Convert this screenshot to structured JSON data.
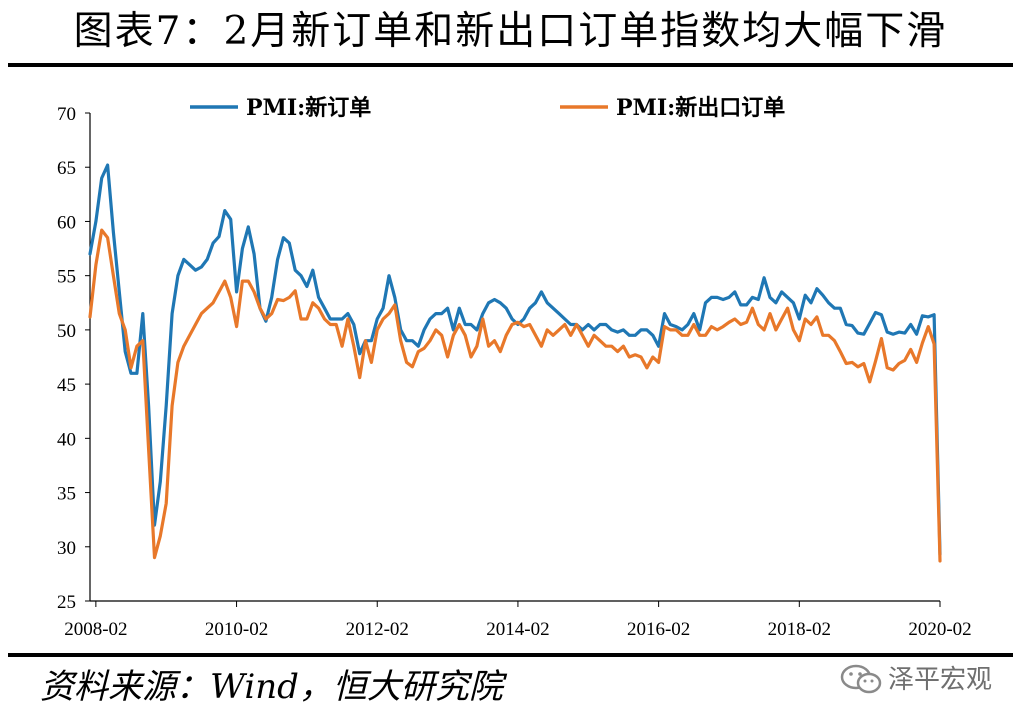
{
  "title": "图表7：2月新订单和新出口订单指数均大幅下滑",
  "source": "资料来源：Wind，恒大研究院",
  "watermark": {
    "text": "泽平宏观",
    "icon": "wechat-icon"
  },
  "chart_data": {
    "type": "line",
    "xlim": [
      "2008-01",
      "2020-02"
    ],
    "ylim": [
      25,
      70
    ],
    "y_ticks": [
      "25",
      "30",
      "35",
      "40",
      "45",
      "50",
      "55",
      "60",
      "65",
      "70"
    ],
    "x_ticks": [
      "2008-02",
      "2010-02",
      "2012-02",
      "2014-02",
      "2016-02",
      "2018-02",
      "2020-02"
    ],
    "grid": false,
    "legend_position": "top",
    "series": [
      {
        "name": "PMI:新订单",
        "color": "#1f77b4",
        "points": [
          [
            "2008-01",
            57.0
          ],
          [
            "2008-02",
            60.0
          ],
          [
            "2008-03",
            64.0
          ],
          [
            "2008-04",
            65.2
          ],
          [
            "2008-05",
            59.0
          ],
          [
            "2008-06",
            53.5
          ],
          [
            "2008-07",
            48.0
          ],
          [
            "2008-08",
            46.0
          ],
          [
            "2008-09",
            46.0
          ],
          [
            "2008-10",
            51.5
          ],
          [
            "2008-11",
            43.0
          ],
          [
            "2008-12",
            32.0
          ],
          [
            "2009-01",
            36.0
          ],
          [
            "2009-02",
            43.0
          ],
          [
            "2009-03",
            51.5
          ],
          [
            "2009-04",
            55.0
          ],
          [
            "2009-05",
            56.5
          ],
          [
            "2009-06",
            56.0
          ],
          [
            "2009-07",
            55.5
          ],
          [
            "2009-08",
            55.8
          ],
          [
            "2009-09",
            56.5
          ],
          [
            "2009-10",
            58.0
          ],
          [
            "2009-11",
            58.6
          ],
          [
            "2009-12",
            61.0
          ],
          [
            "2010-01",
            60.2
          ],
          [
            "2010-02",
            53.5
          ],
          [
            "2010-03",
            57.5
          ],
          [
            "2010-04",
            59.5
          ],
          [
            "2010-05",
            57.0
          ],
          [
            "2010-06",
            52.0
          ],
          [
            "2010-07",
            50.8
          ],
          [
            "2010-08",
            53.0
          ],
          [
            "2010-09",
            56.5
          ],
          [
            "2010-10",
            58.5
          ],
          [
            "2010-11",
            58.0
          ],
          [
            "2010-12",
            55.5
          ],
          [
            "2011-01",
            55.0
          ],
          [
            "2011-02",
            54.0
          ],
          [
            "2011-03",
            55.5
          ],
          [
            "2011-04",
            53.0
          ],
          [
            "2011-05",
            52.0
          ],
          [
            "2011-06",
            51.0
          ],
          [
            "2011-07",
            51.0
          ],
          [
            "2011-08",
            51.0
          ],
          [
            "2011-09",
            51.5
          ],
          [
            "2011-10",
            50.5
          ],
          [
            "2011-11",
            47.8
          ],
          [
            "2011-12",
            49.0
          ],
          [
            "2012-01",
            49.0
          ],
          [
            "2012-02",
            51.0
          ],
          [
            "2012-03",
            52.0
          ],
          [
            "2012-04",
            55.0
          ],
          [
            "2012-05",
            53.0
          ],
          [
            "2012-06",
            50.0
          ],
          [
            "2012-07",
            49.0
          ],
          [
            "2012-08",
            49.0
          ],
          [
            "2012-09",
            48.5
          ],
          [
            "2012-10",
            50.0
          ],
          [
            "2012-11",
            51.0
          ],
          [
            "2012-12",
            51.5
          ],
          [
            "2013-01",
            51.5
          ],
          [
            "2013-02",
            52.0
          ],
          [
            "2013-03",
            50.0
          ],
          [
            "2013-04",
            52.0
          ],
          [
            "2013-05",
            50.5
          ],
          [
            "2013-06",
            50.5
          ],
          [
            "2013-07",
            50.0
          ],
          [
            "2013-08",
            51.5
          ],
          [
            "2013-09",
            52.5
          ],
          [
            "2013-10",
            52.8
          ],
          [
            "2013-11",
            52.5
          ],
          [
            "2013-12",
            52.0
          ],
          [
            "2014-01",
            51.0
          ],
          [
            "2014-02",
            50.5
          ],
          [
            "2014-03",
            51.0
          ],
          [
            "2014-04",
            52.0
          ],
          [
            "2014-05",
            52.5
          ],
          [
            "2014-06",
            53.5
          ],
          [
            "2014-07",
            52.5
          ],
          [
            "2014-08",
            52.0
          ],
          [
            "2014-09",
            51.5
          ],
          [
            "2014-10",
            51.0
          ],
          [
            "2014-11",
            50.5
          ],
          [
            "2014-12",
            50.5
          ],
          [
            "2015-01",
            50.0
          ],
          [
            "2015-02",
            50.5
          ],
          [
            "2015-03",
            50.0
          ],
          [
            "2015-04",
            50.5
          ],
          [
            "2015-05",
            50.5
          ],
          [
            "2015-06",
            50.0
          ],
          [
            "2015-07",
            49.8
          ],
          [
            "2015-08",
            50.0
          ],
          [
            "2015-09",
            49.5
          ],
          [
            "2015-10",
            49.5
          ],
          [
            "2015-11",
            50.0
          ],
          [
            "2015-12",
            50.0
          ],
          [
            "2016-01",
            49.5
          ],
          [
            "2016-02",
            48.5
          ],
          [
            "2016-03",
            51.5
          ],
          [
            "2016-04",
            50.5
          ],
          [
            "2016-05",
            50.3
          ],
          [
            "2016-06",
            50.0
          ],
          [
            "2016-07",
            50.5
          ],
          [
            "2016-08",
            51.5
          ],
          [
            "2016-09",
            50.0
          ],
          [
            "2016-10",
            52.5
          ],
          [
            "2016-11",
            53.0
          ],
          [
            "2016-12",
            53.0
          ],
          [
            "2017-01",
            52.8
          ],
          [
            "2017-02",
            53.0
          ],
          [
            "2017-03",
            53.5
          ],
          [
            "2017-04",
            52.3
          ],
          [
            "2017-05",
            52.3
          ],
          [
            "2017-06",
            53.0
          ],
          [
            "2017-07",
            52.8
          ],
          [
            "2017-08",
            54.8
          ],
          [
            "2017-09",
            53.0
          ],
          [
            "2017-10",
            52.5
          ],
          [
            "2017-11",
            53.5
          ],
          [
            "2017-12",
            53.0
          ],
          [
            "2018-01",
            52.5
          ],
          [
            "2018-02",
            51.0
          ],
          [
            "2018-03",
            53.2
          ],
          [
            "2018-04",
            52.5
          ],
          [
            "2018-05",
            53.8
          ],
          [
            "2018-06",
            53.2
          ],
          [
            "2018-07",
            52.5
          ],
          [
            "2018-08",
            52.0
          ],
          [
            "2018-09",
            52.0
          ],
          [
            "2018-10",
            50.5
          ],
          [
            "2018-11",
            50.4
          ],
          [
            "2018-12",
            49.7
          ],
          [
            "2019-01",
            49.6
          ],
          [
            "2019-02",
            50.6
          ],
          [
            "2019-03",
            51.6
          ],
          [
            "2019-04",
            51.4
          ],
          [
            "2019-05",
            49.8
          ],
          [
            "2019-06",
            49.6
          ],
          [
            "2019-07",
            49.8
          ],
          [
            "2019-08",
            49.7
          ],
          [
            "2019-09",
            50.5
          ],
          [
            "2019-10",
            49.6
          ],
          [
            "2019-11",
            51.3
          ],
          [
            "2019-12",
            51.2
          ],
          [
            "2020-01",
            51.4
          ],
          [
            "2020-02",
            29.3
          ]
        ]
      },
      {
        "name": "PMI:新出口订单",
        "color": "#e8782a",
        "points": [
          [
            "2008-01",
            51.2
          ],
          [
            "2008-02",
            56.0
          ],
          [
            "2008-03",
            59.2
          ],
          [
            "2008-04",
            58.5
          ],
          [
            "2008-05",
            55.0
          ],
          [
            "2008-06",
            51.5
          ],
          [
            "2008-07",
            50.0
          ],
          [
            "2008-08",
            46.5
          ],
          [
            "2008-09",
            48.5
          ],
          [
            "2008-10",
            49.0
          ],
          [
            "2008-11",
            39.0
          ],
          [
            "2008-12",
            29.0
          ],
          [
            "2009-01",
            31.0
          ],
          [
            "2009-02",
            34.0
          ],
          [
            "2009-03",
            43.0
          ],
          [
            "2009-04",
            47.0
          ],
          [
            "2009-05",
            48.5
          ],
          [
            "2009-06",
            49.5
          ],
          [
            "2009-07",
            50.5
          ],
          [
            "2009-08",
            51.5
          ],
          [
            "2009-09",
            52.0
          ],
          [
            "2009-10",
            52.5
          ],
          [
            "2009-11",
            53.5
          ],
          [
            "2009-12",
            54.5
          ],
          [
            "2010-01",
            53.0
          ],
          [
            "2010-02",
            50.3
          ],
          [
            "2010-03",
            54.5
          ],
          [
            "2010-04",
            54.5
          ],
          [
            "2010-05",
            53.5
          ],
          [
            "2010-06",
            52.0
          ],
          [
            "2010-07",
            51.0
          ],
          [
            "2010-08",
            51.5
          ],
          [
            "2010-09",
            52.8
          ],
          [
            "2010-10",
            52.7
          ],
          [
            "2010-11",
            53.0
          ],
          [
            "2010-12",
            53.6
          ],
          [
            "2011-01",
            51.0
          ],
          [
            "2011-02",
            51.0
          ],
          [
            "2011-03",
            52.5
          ],
          [
            "2011-04",
            52.0
          ],
          [
            "2011-05",
            51.0
          ],
          [
            "2011-06",
            50.5
          ],
          [
            "2011-07",
            50.5
          ],
          [
            "2011-08",
            48.5
          ],
          [
            "2011-09",
            51.0
          ],
          [
            "2011-10",
            48.5
          ],
          [
            "2011-11",
            45.6
          ],
          [
            "2011-12",
            49.0
          ],
          [
            "2012-01",
            47.0
          ],
          [
            "2012-02",
            50.0
          ],
          [
            "2012-03",
            51.0
          ],
          [
            "2012-04",
            51.5
          ],
          [
            "2012-05",
            52.3
          ],
          [
            "2012-06",
            49.0
          ],
          [
            "2012-07",
            47.0
          ],
          [
            "2012-08",
            46.6
          ],
          [
            "2012-09",
            48.0
          ],
          [
            "2012-10",
            48.3
          ],
          [
            "2012-11",
            49.0
          ],
          [
            "2012-12",
            50.0
          ],
          [
            "2013-01",
            49.5
          ],
          [
            "2013-02",
            47.5
          ],
          [
            "2013-03",
            49.5
          ],
          [
            "2013-04",
            50.5
          ],
          [
            "2013-05",
            49.5
          ],
          [
            "2013-06",
            47.5
          ],
          [
            "2013-07",
            48.5
          ],
          [
            "2013-08",
            51.0
          ],
          [
            "2013-09",
            48.5
          ],
          [
            "2013-10",
            49.0
          ],
          [
            "2013-11",
            48.0
          ],
          [
            "2013-12",
            49.5
          ],
          [
            "2014-01",
            50.5
          ],
          [
            "2014-02",
            50.7
          ],
          [
            "2014-03",
            50.3
          ],
          [
            "2014-04",
            50.5
          ],
          [
            "2014-05",
            49.5
          ],
          [
            "2014-06",
            48.5
          ],
          [
            "2014-07",
            50.0
          ],
          [
            "2014-08",
            49.5
          ],
          [
            "2014-09",
            50.0
          ],
          [
            "2014-10",
            50.5
          ],
          [
            "2014-11",
            49.5
          ],
          [
            "2014-12",
            50.5
          ],
          [
            "2015-01",
            49.5
          ],
          [
            "2015-02",
            48.5
          ],
          [
            "2015-03",
            49.5
          ],
          [
            "2015-04",
            49.0
          ],
          [
            "2015-05",
            48.5
          ],
          [
            "2015-06",
            48.5
          ],
          [
            "2015-07",
            48.0
          ],
          [
            "2015-08",
            48.5
          ],
          [
            "2015-09",
            47.5
          ],
          [
            "2015-10",
            47.7
          ],
          [
            "2015-11",
            47.5
          ],
          [
            "2015-12",
            46.5
          ],
          [
            "2016-01",
            47.5
          ],
          [
            "2016-02",
            47.0
          ],
          [
            "2016-03",
            50.3
          ],
          [
            "2016-04",
            50.0
          ],
          [
            "2016-05",
            50.0
          ],
          [
            "2016-06",
            49.5
          ],
          [
            "2016-07",
            49.5
          ],
          [
            "2016-08",
            50.5
          ],
          [
            "2016-09",
            49.5
          ],
          [
            "2016-10",
            49.5
          ],
          [
            "2016-11",
            50.3
          ],
          [
            "2016-12",
            50.0
          ],
          [
            "2017-01",
            50.3
          ],
          [
            "2017-02",
            50.7
          ],
          [
            "2017-03",
            51.0
          ],
          [
            "2017-04",
            50.5
          ],
          [
            "2017-05",
            50.7
          ],
          [
            "2017-06",
            52.0
          ],
          [
            "2017-07",
            50.5
          ],
          [
            "2017-08",
            50.0
          ],
          [
            "2017-09",
            51.5
          ],
          [
            "2017-10",
            50.0
          ],
          [
            "2017-11",
            51.0
          ],
          [
            "2017-12",
            52.0
          ],
          [
            "2018-01",
            50.0
          ],
          [
            "2018-02",
            49.0
          ],
          [
            "2018-03",
            51.0
          ],
          [
            "2018-04",
            50.5
          ],
          [
            "2018-05",
            51.2
          ],
          [
            "2018-06",
            49.5
          ],
          [
            "2018-07",
            49.5
          ],
          [
            "2018-08",
            49.0
          ],
          [
            "2018-09",
            48.0
          ],
          [
            "2018-10",
            46.9
          ],
          [
            "2018-11",
            47.0
          ],
          [
            "2018-12",
            46.6
          ],
          [
            "2019-01",
            46.9
          ],
          [
            "2019-02",
            45.2
          ],
          [
            "2019-03",
            47.1
          ],
          [
            "2019-04",
            49.2
          ],
          [
            "2019-05",
            46.5
          ],
          [
            "2019-06",
            46.3
          ],
          [
            "2019-07",
            46.9
          ],
          [
            "2019-08",
            47.2
          ],
          [
            "2019-09",
            48.2
          ],
          [
            "2019-10",
            47.0
          ],
          [
            "2019-11",
            48.8
          ],
          [
            "2019-12",
            50.3
          ],
          [
            "2020-01",
            48.7
          ],
          [
            "2020-02",
            28.7
          ]
        ]
      }
    ]
  }
}
